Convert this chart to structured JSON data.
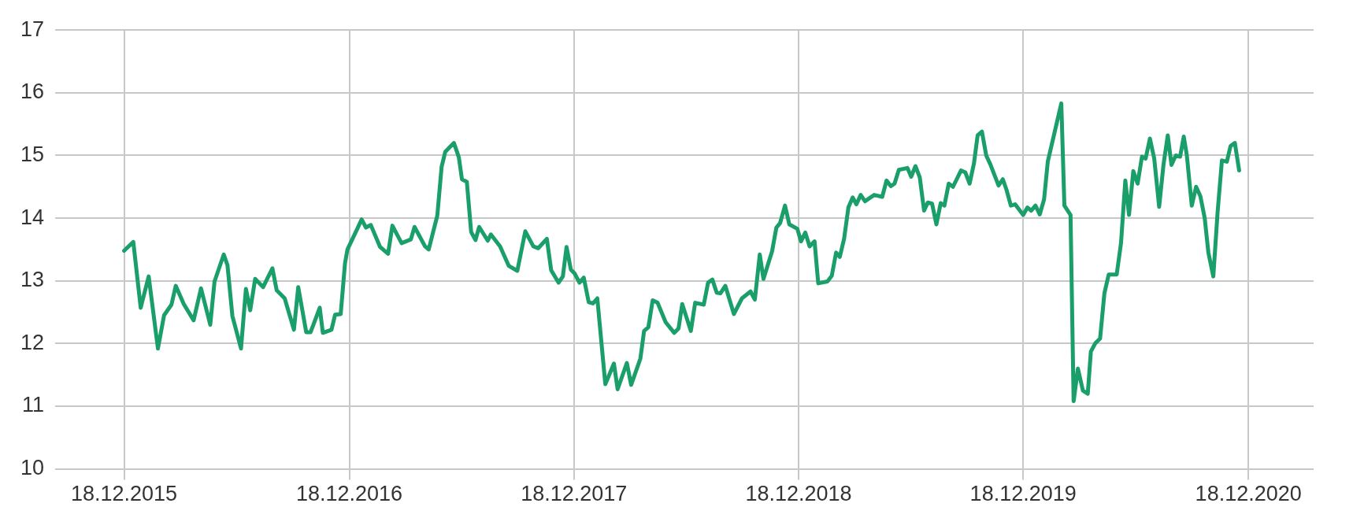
{
  "chart_data": {
    "type": "line",
    "xlim": [
      "2015-08-28",
      "2021-04-03"
    ],
    "xticks": [
      {
        "value": "2015-12-18",
        "label": "18.12.2015"
      },
      {
        "value": "2016-12-18",
        "label": "18.12.2016"
      },
      {
        "value": "2017-12-18",
        "label": "18.12.2017"
      },
      {
        "value": "2018-12-18",
        "label": "18.12.2018"
      },
      {
        "value": "2019-12-18",
        "label": "18.12.2019"
      },
      {
        "value": "2020-12-18",
        "label": "18.12.2020"
      }
    ],
    "ylim": [
      10,
      17
    ],
    "yticks": [
      10,
      11,
      12,
      13,
      14,
      15,
      16,
      17
    ],
    "grid": true,
    "legend": false,
    "marker": "none",
    "line_style": "solid",
    "series": [
      {
        "color": "#1a9e6a",
        "x": [
          "2015-12-18",
          "2016-01-02",
          "2016-01-14",
          "2016-01-27",
          "2016-02-11",
          "2016-02-21",
          "2016-03-04",
          "2016-03-11",
          "2016-03-24",
          "2016-04-09",
          "2016-04-21",
          "2016-05-06",
          "2016-05-13",
          "2016-05-28",
          "2016-06-03",
          "2016-06-11",
          "2016-06-25",
          "2016-07-03",
          "2016-07-10",
          "2016-07-18",
          "2016-07-31",
          "2016-08-15",
          "2016-08-22",
          "2016-09-04",
          "2016-09-19",
          "2016-09-26",
          "2016-10-09",
          "2016-10-16",
          "2016-10-31",
          "2016-11-05",
          "2016-11-19",
          "2016-11-25",
          "2016-12-04",
          "2016-12-11",
          "2016-12-15",
          "2016-12-31",
          "2017-01-07",
          "2017-01-14",
          "2017-01-22",
          "2017-02-06",
          "2017-02-19",
          "2017-02-26",
          "2017-03-13",
          "2017-03-28",
          "2017-04-03",
          "2017-04-20",
          "2017-04-26",
          "2017-05-10",
          "2017-05-17",
          "2017-05-23",
          "2017-06-06",
          "2017-06-14",
          "2017-06-19",
          "2017-06-27",
          "2017-07-04",
          "2017-07-11",
          "2017-07-17",
          "2017-07-31",
          "2017-08-05",
          "2017-08-20",
          "2017-09-03",
          "2017-09-17",
          "2017-09-30",
          "2017-10-13",
          "2017-10-21",
          "2017-11-04",
          "2017-11-11",
          "2017-11-23",
          "2017-11-30",
          "2017-12-06",
          "2017-12-13",
          "2017-12-19",
          "2017-12-27",
          "2018-01-03",
          "2018-01-11",
          "2018-01-18",
          "2018-01-25",
          "2018-02-07",
          "2018-02-21",
          "2018-02-27",
          "2018-03-14",
          "2018-03-21",
          "2018-04-05",
          "2018-04-11",
          "2018-04-18",
          "2018-04-25",
          "2018-05-03",
          "2018-05-16",
          "2018-05-30",
          "2018-06-06",
          "2018-06-12",
          "2018-06-26",
          "2018-07-03",
          "2018-07-17",
          "2018-07-24",
          "2018-07-31",
          "2018-08-07",
          "2018-08-13",
          "2018-08-21",
          "2018-09-04",
          "2018-09-17",
          "2018-10-01",
          "2018-10-08",
          "2018-10-16",
          "2018-10-22",
          "2018-11-05",
          "2018-11-12",
          "2018-11-18",
          "2018-11-26",
          "2018-12-03",
          "2018-12-16",
          "2018-12-22",
          "2018-12-29",
          "2019-01-05",
          "2019-01-13",
          "2019-01-19",
          "2019-02-03",
          "2019-02-10",
          "2019-02-17",
          "2019-02-23",
          "2019-03-02",
          "2019-03-09",
          "2019-03-16",
          "2019-03-22",
          "2019-03-29",
          "2019-04-05",
          "2019-04-20",
          "2019-05-03",
          "2019-05-10",
          "2019-05-17",
          "2019-05-23",
          "2019-05-30",
          "2019-06-13",
          "2019-06-19",
          "2019-06-26",
          "2019-07-03",
          "2019-07-10",
          "2019-07-16",
          "2019-07-23",
          "2019-07-30",
          "2019-08-06",
          "2019-08-12",
          "2019-08-19",
          "2019-08-26",
          "2019-09-08",
          "2019-09-15",
          "2019-09-22",
          "2019-09-29",
          "2019-10-05",
          "2019-10-12",
          "2019-10-19",
          "2019-10-26",
          "2019-11-08",
          "2019-11-15",
          "2019-11-21",
          "2019-11-28",
          "2019-12-05",
          "2019-12-18",
          "2019-12-25",
          "2019-12-31",
          "2020-01-07",
          "2020-01-14",
          "2020-01-21",
          "2020-01-27",
          "2020-02-18",
          "2020-02-23",
          "2020-03-04",
          "2020-03-09",
          "2020-03-16",
          "2020-03-24",
          "2020-04-01",
          "2020-04-06",
          "2020-04-13",
          "2020-04-21",
          "2020-04-28",
          "2020-05-05",
          "2020-05-18",
          "2020-05-25",
          "2020-06-01",
          "2020-06-07",
          "2020-06-14",
          "2020-06-21",
          "2020-06-28",
          "2020-07-04",
          "2020-07-11",
          "2020-07-18",
          "2020-07-26",
          "2020-08-02",
          "2020-08-09",
          "2020-08-15",
          "2020-08-22",
          "2020-08-29",
          "2020-09-04",
          "2020-09-09",
          "2020-09-17",
          "2020-09-24",
          "2020-10-01",
          "2020-10-08",
          "2020-10-14",
          "2020-10-22",
          "2020-10-29",
          "2020-11-05",
          "2020-11-13",
          "2020-11-19",
          "2020-11-26",
          "2020-12-03"
        ],
        "values": [
          13.48,
          13.62,
          12.57,
          13.07,
          11.92,
          12.45,
          12.62,
          12.92,
          12.63,
          12.37,
          12.88,
          12.3,
          12.99,
          13.42,
          13.25,
          12.44,
          11.92,
          12.87,
          12.53,
          13.03,
          12.9,
          13.2,
          12.85,
          12.72,
          12.22,
          12.9,
          12.18,
          12.18,
          12.57,
          12.17,
          12.22,
          12.46,
          12.47,
          13.28,
          13.5,
          13.83,
          13.98,
          13.85,
          13.89,
          13.54,
          13.43,
          13.88,
          13.6,
          13.66,
          13.86,
          13.55,
          13.5,
          14.04,
          14.82,
          15.06,
          15.2,
          14.97,
          14.62,
          14.58,
          13.78,
          13.65,
          13.86,
          13.64,
          13.74,
          13.55,
          13.24,
          13.16,
          13.79,
          13.55,
          13.52,
          13.67,
          13.17,
          12.97,
          13.07,
          13.54,
          13.18,
          13.12,
          12.97,
          13.05,
          12.66,
          12.64,
          12.72,
          11.35,
          11.68,
          11.27,
          11.69,
          11.34,
          11.76,
          12.2,
          12.26,
          12.69,
          12.65,
          12.34,
          12.17,
          12.24,
          12.63,
          12.2,
          12.65,
          12.62,
          12.97,
          13.02,
          12.81,
          12.8,
          12.92,
          12.47,
          12.72,
          12.83,
          12.7,
          13.42,
          13.03,
          13.47,
          13.85,
          13.92,
          14.2,
          13.9,
          13.83,
          13.63,
          13.77,
          13.55,
          13.63,
          12.96,
          12.99,
          13.08,
          13.45,
          13.38,
          13.67,
          14.17,
          14.33,
          14.22,
          14.37,
          14.27,
          14.37,
          14.34,
          14.6,
          14.51,
          14.55,
          14.77,
          14.8,
          14.66,
          14.83,
          14.65,
          14.12,
          14.25,
          14.23,
          13.9,
          14.24,
          14.2,
          14.55,
          14.5,
          14.76,
          14.73,
          14.55,
          14.87,
          15.32,
          15.38,
          15.0,
          14.85,
          14.52,
          14.62,
          14.45,
          14.2,
          14.22,
          14.05,
          14.17,
          14.12,
          14.2,
          14.06,
          14.3,
          14.9,
          15.83,
          14.2,
          14.05,
          11.08,
          11.6,
          11.25,
          11.2,
          11.87,
          12.0,
          12.08,
          12.8,
          13.1,
          13.1,
          13.6,
          14.6,
          14.05,
          14.75,
          14.55,
          14.98,
          14.95,
          15.27,
          14.95,
          14.18,
          14.85,
          15.32,
          14.85,
          15.0,
          14.98,
          15.3,
          15.0,
          14.2,
          14.5,
          14.35,
          14.0,
          13.45,
          13.07,
          14.1,
          14.92,
          14.9,
          15.15,
          15.2,
          14.76
        ]
      }
    ]
  }
}
